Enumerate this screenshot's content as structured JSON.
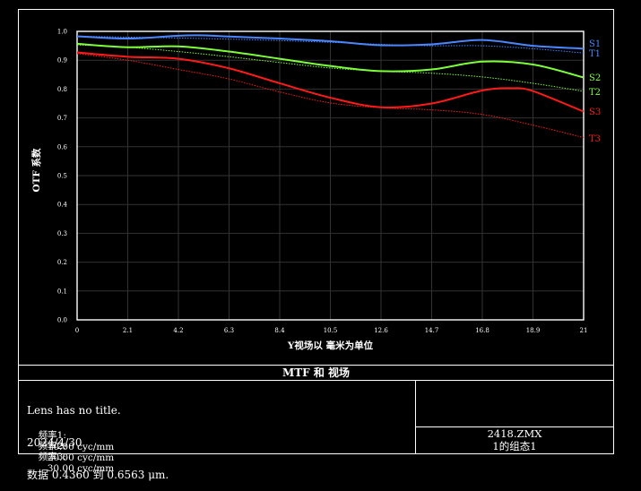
{
  "chart_data": {
    "type": "line",
    "xlabel": "Y视场以 毫米为单位",
    "ylabel": "OTF 系数",
    "xlim": [
      0,
      21
    ],
    "ylim": [
      0,
      1.0
    ],
    "x_ticks": [
      "0",
      "2.1",
      "4.2",
      "6.3",
      "8.4",
      "10.5",
      "12.6",
      "14.7",
      "16.8",
      "18.9",
      "21"
    ],
    "y_ticks": [
      "0.0",
      "0.1",
      "0.2",
      "0.3",
      "0.4",
      "0.5",
      "0.6",
      "0.7",
      "0.8",
      "0.9",
      "1.0"
    ],
    "grid": true,
    "series": [
      {
        "name": "S1",
        "color": "#4a86ff",
        "style": "solid",
        "x": [
          0,
          2.1,
          4.2,
          5.3,
          6.3,
          8.4,
          10.5,
          12.6,
          14.7,
          16.8,
          18.9,
          21
        ],
        "y": [
          0.983,
          0.975,
          0.985,
          0.986,
          0.982,
          0.975,
          0.966,
          0.952,
          0.955,
          0.97,
          0.95,
          0.94
        ]
      },
      {
        "name": "T1",
        "color": "#4a86ff",
        "style": "dotted",
        "x": [
          0,
          2.1,
          4.2,
          6.3,
          8.4,
          10.5,
          12.6,
          14.7,
          16.8,
          18.9,
          21
        ],
        "y": [
          0.983,
          0.98,
          0.977,
          0.973,
          0.968,
          0.962,
          0.955,
          0.95,
          0.95,
          0.94,
          0.925
        ]
      },
      {
        "name": "S2",
        "color": "#7dff3a",
        "style": "solid",
        "x": [
          0,
          2.1,
          4.2,
          6.3,
          8.4,
          10.5,
          12.6,
          14.7,
          16.8,
          18.9,
          21
        ],
        "y": [
          0.957,
          0.945,
          0.948,
          0.93,
          0.905,
          0.88,
          0.862,
          0.868,
          0.895,
          0.885,
          0.84
        ]
      },
      {
        "name": "T2",
        "color": "#7dff3a",
        "style": "dotted",
        "x": [
          0,
          2.1,
          4.2,
          6.3,
          8.4,
          10.5,
          12.6,
          14.7,
          16.8,
          18.9,
          21
        ],
        "y": [
          0.953,
          0.945,
          0.93,
          0.912,
          0.892,
          0.873,
          0.862,
          0.855,
          0.842,
          0.82,
          0.792
        ]
      },
      {
        "name": "S3",
        "color": "#ff1a1a",
        "style": "solid",
        "x": [
          0,
          2.1,
          4.2,
          6.3,
          8.4,
          10.5,
          12.6,
          14.7,
          16.8,
          18.0,
          18.9,
          21
        ],
        "y": [
          0.927,
          0.912,
          0.905,
          0.872,
          0.82,
          0.77,
          0.737,
          0.75,
          0.795,
          0.803,
          0.793,
          0.722
        ]
      },
      {
        "name": "T3",
        "color": "#ff1a1a",
        "style": "dotted",
        "x": [
          0,
          2.1,
          4.2,
          6.3,
          8.4,
          10.5,
          12.6,
          14.7,
          16.8,
          18.9,
          21
        ],
        "y": [
          0.923,
          0.9,
          0.868,
          0.835,
          0.79,
          0.752,
          0.735,
          0.728,
          0.712,
          0.675,
          0.632
        ]
      }
    ]
  },
  "footer": {
    "title": "MTF 和 视场",
    "lines": [
      "Lens has no title.",
      "2024/4/30",
      "数据 0.4360 到 0.6563 μm."
    ],
    "frequencies": [
      {
        "label": "频率1:",
        "value": "10.00 cyc/mm",
        "color": "#4a86ff"
      },
      {
        "label": "频率2:",
        "value": "20.00 cyc/mm",
        "color": "#7dff3a"
      },
      {
        "label": "频率3:",
        "value": "30.00 cyc/mm",
        "color": "#ff1a1a"
      }
    ],
    "file": "2418.ZMX",
    "config": "1的组态1"
  }
}
